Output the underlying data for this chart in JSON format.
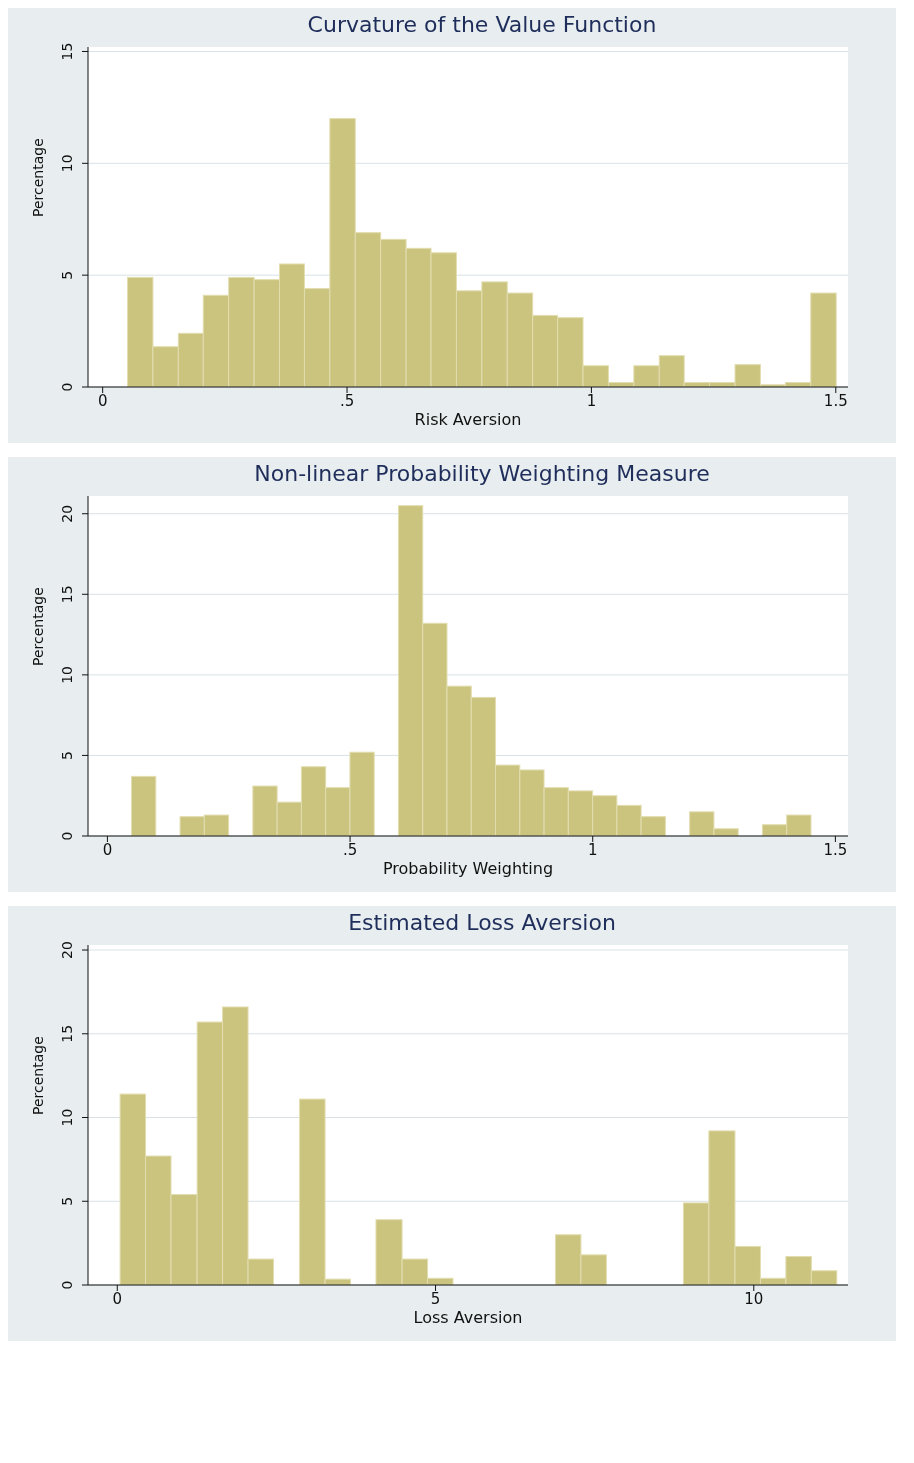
{
  "chart_data": [
    {
      "type": "histogram",
      "title": "Curvature of the Value Function",
      "xlabel": "Risk Aversion",
      "ylabel": "Percentage",
      "color": "#cbc47f",
      "grid": "y",
      "bins": [
        0.05,
        0.102,
        0.154,
        0.205,
        0.257,
        0.309,
        0.361,
        0.412,
        0.464,
        0.516,
        0.568,
        0.62,
        0.671,
        0.723,
        0.775,
        0.827,
        0.879,
        0.93,
        0.982,
        1.034,
        1.086,
        1.138,
        1.189,
        1.241,
        1.293,
        1.345,
        1.396,
        1.448,
        1.5
      ],
      "values": [
        4.9,
        1.8,
        2.4,
        4.1,
        4.9,
        4.8,
        5.5,
        4.4,
        12.0,
        6.9,
        6.6,
        6.2,
        6.0,
        4.3,
        4.7,
        4.2,
        3.2,
        3.1,
        0.95,
        0.2,
        0.95,
        1.4,
        0.2,
        0.2,
        1.0,
        0.1,
        0.2,
        4.2
      ],
      "xlim": [
        -0.03,
        1.525
      ],
      "xticks": [
        0,
        {
          "value": 0.5,
          "label": ".5"
        },
        1,
        1.5
      ],
      "ylim": [
        0,
        15.2
      ],
      "yticks": [
        0,
        5,
        10,
        15
      ]
    },
    {
      "type": "histogram",
      "title": "Non-linear Probability Weighting Measure",
      "xlabel": "Probability Weighting",
      "ylabel": "Percentage",
      "color": "#cbc47f",
      "grid": "y",
      "bins": [
        0.05,
        0.1,
        0.15,
        0.2,
        0.25,
        0.3,
        0.35,
        0.4,
        0.45,
        0.5,
        0.55,
        0.6,
        0.65,
        0.7,
        0.75,
        0.8,
        0.85,
        0.9,
        0.95,
        1.0,
        1.05,
        1.1,
        1.15,
        1.2,
        1.25,
        1.3,
        1.35,
        1.4,
        1.45
      ],
      "values": [
        3.7,
        0,
        1.2,
        1.3,
        0,
        3.1,
        2.1,
        4.3,
        3.0,
        5.2,
        0,
        20.5,
        13.2,
        9.3,
        8.6,
        4.4,
        4.1,
        3.0,
        2.8,
        2.5,
        1.9,
        1.2,
        0,
        1.5,
        0.45,
        0,
        0.7,
        1.3
      ],
      "xlim": [
        -0.04,
        1.526
      ],
      "xticks": [
        0,
        {
          "value": 0.5,
          "label": ".5"
        },
        1,
        1.5
      ],
      "ylim": [
        0,
        21.1
      ],
      "yticks": [
        0,
        5,
        10,
        15,
        20
      ]
    },
    {
      "type": "histogram",
      "title": "Estimated Loss Aversion",
      "xlabel": "Loss Aversion",
      "ylabel": "Percentage",
      "color": "#cbc47f",
      "grid": "y",
      "bins": [
        0.04,
        0.44,
        0.84,
        1.25,
        1.65,
        2.05,
        2.45,
        2.86,
        3.26,
        3.66,
        4.06,
        4.47,
        4.87,
        5.27,
        6.88,
        7.28,
        7.68,
        8.89,
        9.29,
        9.7,
        10.1,
        10.5,
        10.9,
        11.3
      ],
      "values": [
        11.4,
        7.7,
        5.4,
        15.7,
        16.6,
        1.55,
        0,
        11.1,
        0.35,
        0,
        3.9,
        1.55,
        0.4,
        0,
        3.0,
        1.8,
        0,
        4.9,
        9.2,
        2.3,
        0.4,
        1.7,
        0.85
      ],
      "xlim": [
        -0.46,
        11.48
      ],
      "xticks": [
        0,
        5,
        10
      ],
      "ylim": [
        0,
        20.3
      ],
      "yticks": [
        0,
        5,
        10,
        15,
        20
      ]
    }
  ]
}
